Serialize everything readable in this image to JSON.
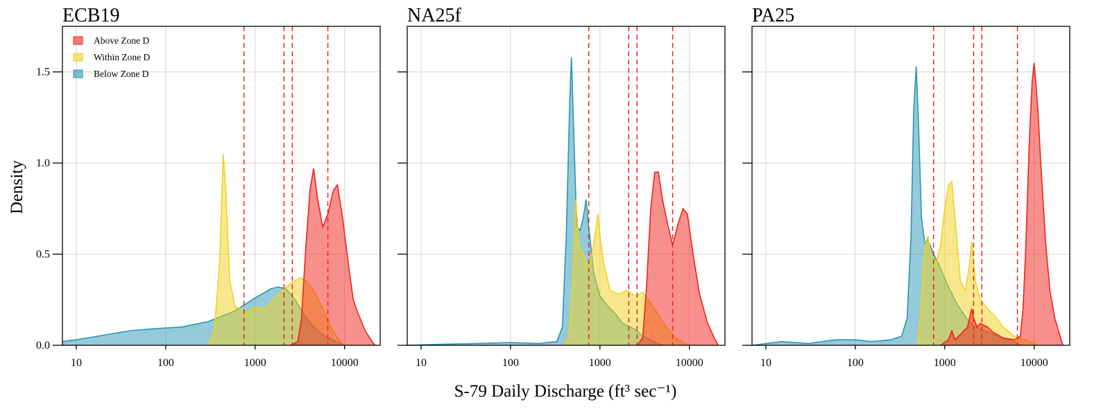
{
  "figure": {
    "xlabel": "S-79 Daily Discharge (ft³ sec⁻¹)",
    "ylabel": "Density"
  },
  "colors": {
    "above": "#f0211a",
    "within": "#f2d21c",
    "below": "#2a95b4",
    "threshold_line": "#f0211a",
    "grid": "#d4d4d4"
  },
  "legend": {
    "placement": "top-left of first panel",
    "entries": [
      {
        "label": "Above Zone D",
        "key": "above"
      },
      {
        "label": "Within Zone D",
        "key": "within"
      },
      {
        "label": "Below Zone D",
        "key": "below"
      }
    ]
  },
  "chart_data": [
    {
      "type": "area",
      "title": "ECB19",
      "x_scale": "log",
      "xlim": [
        7,
        25000
      ],
      "ylim": [
        0,
        1.75
      ],
      "x_ticks": [
        10,
        100,
        1000,
        10000
      ],
      "x_tick_labels": [
        "10",
        "100",
        "1000",
        "10000"
      ],
      "y_ticks": [
        0.0,
        0.5,
        1.0,
        1.5
      ],
      "y_tick_labels": [
        "0.0",
        "0.5",
        "1.0",
        "1.5"
      ],
      "grid": true,
      "threshold_lines": [
        750,
        2100,
        2600,
        6500
      ],
      "series": [
        {
          "name": "Below Zone D",
          "key": "below",
          "points": [
            [
              7,
              0.02
            ],
            [
              10,
              0.03
            ],
            [
              20,
              0.055
            ],
            [
              40,
              0.08
            ],
            [
              70,
              0.09
            ],
            [
              150,
              0.1
            ],
            [
              300,
              0.13
            ],
            [
              600,
              0.19
            ],
            [
              1000,
              0.26
            ],
            [
              1500,
              0.31
            ],
            [
              1800,
              0.32
            ],
            [
              2200,
              0.31
            ],
            [
              2800,
              0.25
            ],
            [
              3500,
              0.17
            ],
            [
              4500,
              0.1
            ],
            [
              6000,
              0.05
            ],
            [
              8000,
              0.02
            ],
            [
              10000,
              0.0
            ]
          ]
        },
        {
          "name": "Within Zone D",
          "key": "within",
          "points": [
            [
              300,
              0.0
            ],
            [
              350,
              0.08
            ],
            [
              400,
              0.45
            ],
            [
              440,
              1.05
            ],
            [
              470,
              0.85
            ],
            [
              520,
              0.35
            ],
            [
              600,
              0.21
            ],
            [
              700,
              0.2
            ],
            [
              800,
              0.17
            ],
            [
              900,
              0.2
            ],
            [
              1100,
              0.21
            ],
            [
              1300,
              0.2
            ],
            [
              1600,
              0.25
            ],
            [
              2000,
              0.3
            ],
            [
              2500,
              0.34
            ],
            [
              3200,
              0.37
            ],
            [
              3800,
              0.35
            ],
            [
              4500,
              0.3
            ],
            [
              5500,
              0.22
            ],
            [
              7000,
              0.1
            ],
            [
              9000,
              0.02
            ],
            [
              10000,
              0.0
            ]
          ]
        },
        {
          "name": "Above Zone D",
          "key": "above",
          "points": [
            [
              2500,
              0.0
            ],
            [
              3000,
              0.02
            ],
            [
              3300,
              0.15
            ],
            [
              3700,
              0.55
            ],
            [
              4100,
              0.85
            ],
            [
              4500,
              0.97
            ],
            [
              5000,
              0.8
            ],
            [
              5700,
              0.65
            ],
            [
              6500,
              0.72
            ],
            [
              7500,
              0.85
            ],
            [
              8300,
              0.88
            ],
            [
              9500,
              0.7
            ],
            [
              11000,
              0.45
            ],
            [
              12500,
              0.25
            ],
            [
              14000,
              0.18
            ],
            [
              17000,
              0.08
            ],
            [
              21000,
              0.01
            ],
            [
              22000,
              0.0
            ]
          ]
        }
      ]
    },
    {
      "type": "area",
      "title": "NA25f",
      "x_scale": "log",
      "xlim": [
        7,
        25000
      ],
      "ylim": [
        0,
        1.75
      ],
      "x_ticks": [
        10,
        100,
        1000,
        10000
      ],
      "x_tick_labels": [
        "10",
        "100",
        "1000",
        "10000"
      ],
      "y_ticks": [
        0.0,
        0.5,
        1.0,
        1.5
      ],
      "y_tick_labels": [
        "",
        "",
        "",
        ""
      ],
      "grid": true,
      "threshold_lines": [
        750,
        2100,
        2600,
        6500
      ],
      "series": [
        {
          "name": "Below Zone D",
          "key": "below",
          "points": [
            [
              7,
              0.0
            ],
            [
              15,
              0.005
            ],
            [
              40,
              0.01
            ],
            [
              100,
              0.015
            ],
            [
              200,
              0.01
            ],
            [
              330,
              0.02
            ],
            [
              380,
              0.1
            ],
            [
              420,
              0.6
            ],
            [
              460,
              1.35
            ],
            [
              480,
              1.58
            ],
            [
              500,
              1.3
            ],
            [
              550,
              0.65
            ],
            [
              600,
              0.63
            ],
            [
              650,
              0.7
            ],
            [
              700,
              0.8
            ],
            [
              750,
              0.65
            ],
            [
              850,
              0.4
            ],
            [
              1000,
              0.27
            ],
            [
              1200,
              0.22
            ],
            [
              1500,
              0.17
            ],
            [
              1800,
              0.12
            ],
            [
              2200,
              0.1
            ],
            [
              2600,
              0.08
            ],
            [
              3000,
              0.05
            ],
            [
              4000,
              0.02
            ],
            [
              5000,
              0.0
            ]
          ]
        },
        {
          "name": "Within Zone D",
          "key": "within",
          "points": [
            [
              400,
              0.0
            ],
            [
              450,
              0.05
            ],
            [
              500,
              0.35
            ],
            [
              540,
              0.8
            ],
            [
              580,
              0.55
            ],
            [
              650,
              0.5
            ],
            [
              750,
              0.42
            ],
            [
              850,
              0.55
            ],
            [
              950,
              0.72
            ],
            [
              1000,
              0.6
            ],
            [
              1100,
              0.45
            ],
            [
              1300,
              0.3
            ],
            [
              1600,
              0.28
            ],
            [
              2000,
              0.3
            ],
            [
              2500,
              0.27
            ],
            [
              3000,
              0.29
            ],
            [
              3600,
              0.24
            ],
            [
              4500,
              0.17
            ],
            [
              5500,
              0.1
            ],
            [
              7000,
              0.04
            ],
            [
              9000,
              0.01
            ],
            [
              10000,
              0.0
            ]
          ]
        },
        {
          "name": "Above Zone D",
          "key": "above",
          "points": [
            [
              2600,
              0.0
            ],
            [
              3000,
              0.04
            ],
            [
              3300,
              0.3
            ],
            [
              3700,
              0.75
            ],
            [
              4100,
              0.95
            ],
            [
              4500,
              0.95
            ],
            [
              5000,
              0.8
            ],
            [
              5800,
              0.65
            ],
            [
              6500,
              0.55
            ],
            [
              7500,
              0.67
            ],
            [
              8500,
              0.75
            ],
            [
              9500,
              0.72
            ],
            [
              11000,
              0.5
            ],
            [
              13000,
              0.28
            ],
            [
              16000,
              0.12
            ],
            [
              19000,
              0.04
            ],
            [
              21000,
              0.0
            ]
          ]
        }
      ]
    },
    {
      "type": "area",
      "title": "PA25",
      "x_scale": "log",
      "xlim": [
        7,
        25000
      ],
      "ylim": [
        0,
        1.75
      ],
      "x_ticks": [
        10,
        100,
        1000,
        10000
      ],
      "x_tick_labels": [
        "10",
        "100",
        "1000",
        "10000"
      ],
      "y_ticks": [
        0.0,
        0.5,
        1.0,
        1.5
      ],
      "y_tick_labels": [
        "",
        "",
        "",
        ""
      ],
      "grid": true,
      "threshold_lines": [
        750,
        2100,
        2600,
        6500
      ],
      "series": [
        {
          "name": "Below Zone D",
          "key": "below",
          "points": [
            [
              7,
              0.0
            ],
            [
              15,
              0.02
            ],
            [
              30,
              0.01
            ],
            [
              60,
              0.03
            ],
            [
              100,
              0.03
            ],
            [
              150,
              0.02
            ],
            [
              250,
              0.03
            ],
            [
              330,
              0.05
            ],
            [
              380,
              0.15
            ],
            [
              420,
              0.6
            ],
            [
              450,
              1.3
            ],
            [
              480,
              1.53
            ],
            [
              510,
              1.2
            ],
            [
              550,
              0.7
            ],
            [
              600,
              0.55
            ],
            [
              650,
              0.58
            ],
            [
              750,
              0.5
            ],
            [
              900,
              0.42
            ],
            [
              1100,
              0.32
            ],
            [
              1400,
              0.22
            ],
            [
              1800,
              0.14
            ],
            [
              2200,
              0.1
            ],
            [
              2800,
              0.08
            ],
            [
              3500,
              0.06
            ],
            [
              4500,
              0.04
            ],
            [
              6000,
              0.02
            ],
            [
              7000,
              0.0
            ]
          ]
        },
        {
          "name": "Within Zone D",
          "key": "within",
          "points": [
            [
              500,
              0.0
            ],
            [
              550,
              0.25
            ],
            [
              600,
              0.55
            ],
            [
              650,
              0.6
            ],
            [
              700,
              0.5
            ],
            [
              800,
              0.45
            ],
            [
              900,
              0.55
            ],
            [
              1000,
              0.75
            ],
            [
              1100,
              0.88
            ],
            [
              1200,
              0.9
            ],
            [
              1300,
              0.7
            ],
            [
              1500,
              0.35
            ],
            [
              1700,
              0.3
            ],
            [
              1900,
              0.45
            ],
            [
              2000,
              0.57
            ],
            [
              2200,
              0.35
            ],
            [
              2500,
              0.25
            ],
            [
              3000,
              0.2
            ],
            [
              3500,
              0.17
            ],
            [
              4500,
              0.1
            ],
            [
              6000,
              0.05
            ],
            [
              8000,
              0.03
            ],
            [
              10000,
              0.01
            ],
            [
              11000,
              0.0
            ]
          ]
        },
        {
          "name": "Above Zone D",
          "key": "above",
          "points": [
            [
              900,
              0.0
            ],
            [
              1100,
              0.03
            ],
            [
              1200,
              0.08
            ],
            [
              1300,
              0.03
            ],
            [
              1500,
              0.06
            ],
            [
              1800,
              0.1
            ],
            [
              2000,
              0.2
            ],
            [
              2100,
              0.15
            ],
            [
              2300,
              0.1
            ],
            [
              2500,
              0.12
            ],
            [
              3000,
              0.1
            ],
            [
              3500,
              0.07
            ],
            [
              4500,
              0.04
            ],
            [
              6000,
              0.03
            ],
            [
              7000,
              0.05
            ],
            [
              7500,
              0.2
            ],
            [
              8000,
              0.5
            ],
            [
              8800,
              1.1
            ],
            [
              9500,
              1.45
            ],
            [
              10000,
              1.55
            ],
            [
              11000,
              1.3
            ],
            [
              12000,
              0.95
            ],
            [
              13500,
              0.55
            ],
            [
              15000,
              0.3
            ],
            [
              17000,
              0.15
            ],
            [
              20000,
              0.03
            ],
            [
              21000,
              0.0
            ]
          ]
        }
      ]
    }
  ]
}
